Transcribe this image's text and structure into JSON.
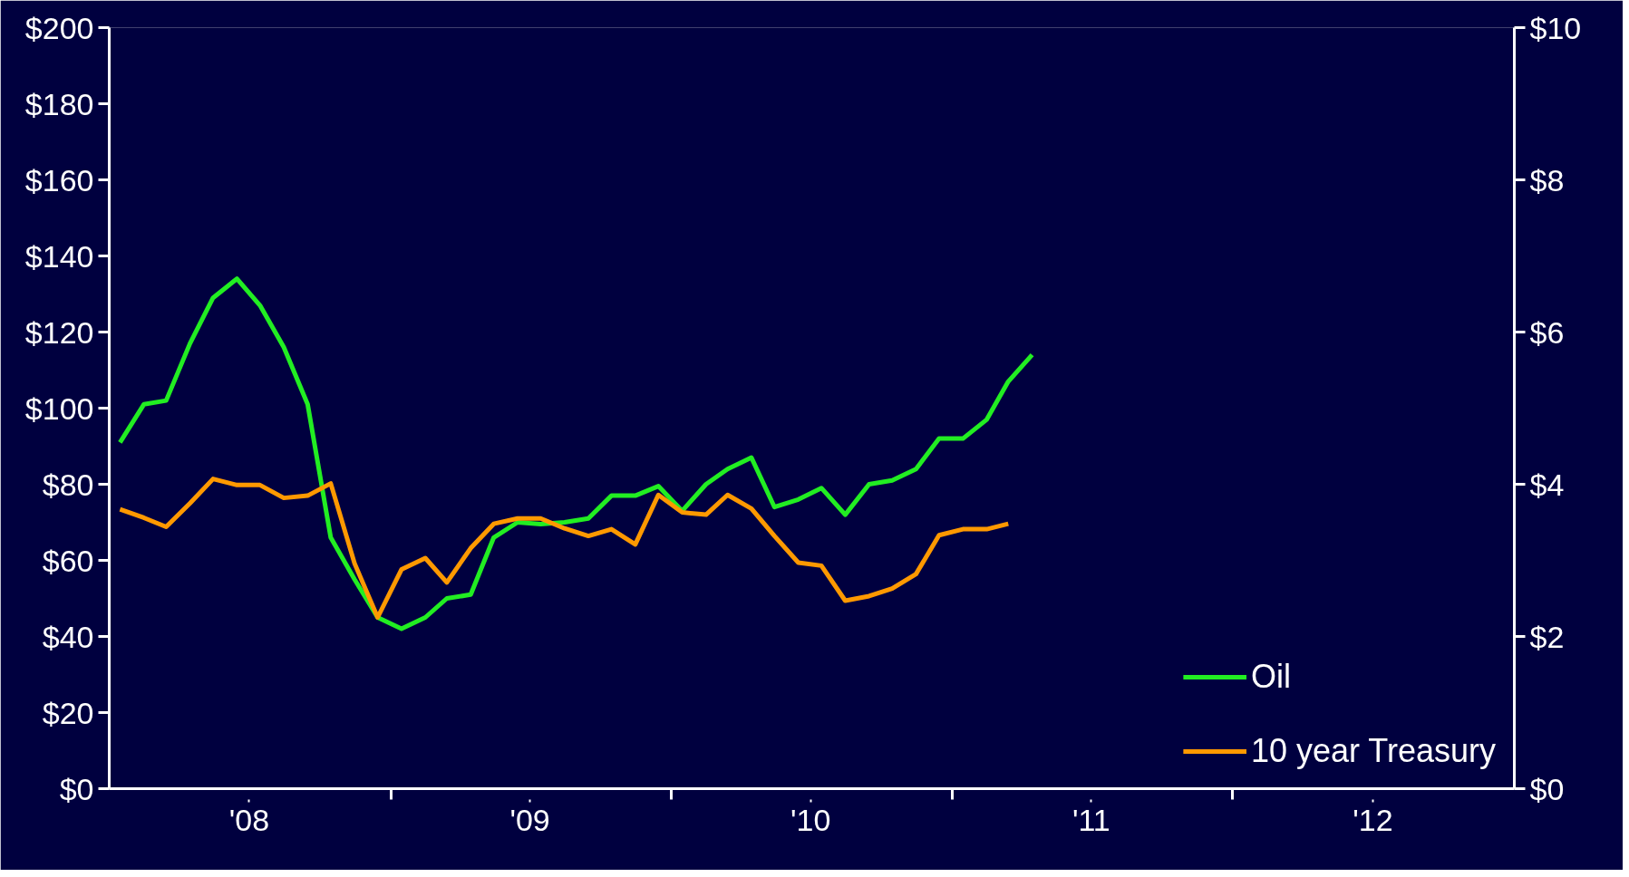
{
  "chart_data": {
    "type": "line",
    "x": [
      "2008-01-15",
      "2008-02-15",
      "2008-03-15",
      "2008-04-15",
      "2008-05-15",
      "2008-06-15",
      "2008-07-15",
      "2008-08-15",
      "2008-09-15",
      "2008-10-15",
      "2008-11-15",
      "2008-12-15",
      "2009-01-15",
      "2009-02-15",
      "2009-03-15",
      "2009-04-15",
      "2009-05-15",
      "2009-06-15",
      "2009-07-15",
      "2009-08-15",
      "2009-09-15",
      "2009-10-15",
      "2009-11-15",
      "2009-12-15",
      "2010-01-15",
      "2010-02-15",
      "2010-03-15",
      "2010-04-15",
      "2010-05-15",
      "2010-06-15",
      "2010-07-15",
      "2010-08-15",
      "2010-09-15",
      "2010-10-15",
      "2010-11-15",
      "2010-12-15",
      "2011-01-15",
      "2011-02-15",
      "2011-03-15",
      "2011-04-15"
    ],
    "series": [
      {
        "name": "Oil",
        "color": "#22ee22",
        "values": [
          91,
          101,
          102,
          117,
          129,
          134,
          127,
          116,
          101,
          66,
          55,
          45,
          42,
          45,
          50,
          51,
          66,
          70,
          69.5,
          70,
          71,
          77,
          77,
          79.5,
          73,
          80,
          84,
          87,
          74,
          76,
          79,
          72,
          80,
          81,
          84,
          92,
          92,
          97,
          107,
          114
        ]
      },
      {
        "name": "10 year Treasury",
        "color": "#ff9900",
        "axis": "y2",
        "values": [
          3.67,
          3.56,
          3.44,
          3.75,
          4.07,
          3.99,
          3.99,
          3.82,
          3.85,
          4.01,
          2.96,
          2.25,
          2.88,
          3.03,
          2.71,
          3.16,
          3.48,
          3.55,
          3.55,
          3.42,
          3.32,
          3.41,
          3.21,
          3.86,
          3.63,
          3.6,
          3.86,
          3.68,
          3.32,
          2.97,
          2.93,
          2.47,
          2.53,
          2.63,
          2.82,
          3.33,
          3.41,
          3.41,
          3.48,
          null
        ]
      }
    ],
    "xlim": [
      "2008-01",
      "2013-01"
    ],
    "xticks": [
      {
        "value": "2008-07",
        "label": "'08"
      },
      {
        "value": "2009-01",
        "label": null
      },
      {
        "value": "2009-07",
        "label": "'09"
      },
      {
        "value": "2010-01",
        "label": null
      },
      {
        "value": "2010-07",
        "label": "'10"
      },
      {
        "value": "2011-01",
        "label": null
      },
      {
        "value": "2011-07",
        "label": "'11"
      },
      {
        "value": "2012-01",
        "label": null
      },
      {
        "value": "2012-07",
        "label": "'12"
      }
    ],
    "ylim": [
      0,
      200
    ],
    "yticks": [
      {
        "value": 0,
        "label": "$0"
      },
      {
        "value": 20,
        "label": "$20"
      },
      {
        "value": 40,
        "label": "$40"
      },
      {
        "value": 60,
        "label": "$60"
      },
      {
        "value": 80,
        "label": "$80"
      },
      {
        "value": 100,
        "label": "$100"
      },
      {
        "value": 120,
        "label": "$120"
      },
      {
        "value": 140,
        "label": "$140"
      },
      {
        "value": 160,
        "label": "$160"
      },
      {
        "value": 180,
        "label": "$180"
      },
      {
        "value": 200,
        "label": "$200"
      }
    ],
    "y2lim": [
      0,
      10
    ],
    "y2ticks": [
      {
        "value": 0,
        "label": "$0"
      },
      {
        "value": 2,
        "label": "$2"
      },
      {
        "value": 4,
        "label": "$4"
      },
      {
        "value": 6,
        "label": "$6"
      },
      {
        "value": 8,
        "label": "$8"
      },
      {
        "value": 10,
        "label": "$10"
      }
    ],
    "grid": false,
    "legend": "bottom right",
    "line_style": "solid",
    "marker": "none"
  }
}
